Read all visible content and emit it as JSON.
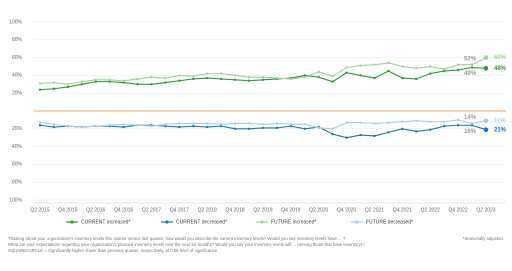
{
  "chart_data": {
    "type": "line",
    "categories": [
      "Q2 2015",
      null,
      "Q4 2015",
      null,
      "Q2 2016",
      null,
      "Q4 2016",
      null,
      "Q2 2017",
      null,
      "Q4 2017",
      null,
      "Q2 2018",
      null,
      "Q4 2018",
      null,
      "Q2 2019",
      null,
      "Q4 2019",
      null,
      "Q2 2020",
      null,
      "Q4 2020",
      null,
      "Q2 2021",
      null,
      "Q4 2021",
      null,
      "Q2 2022",
      null,
      "Q4 2022",
      null,
      "Q2 2023"
    ],
    "ylim": [
      0,
      100
    ],
    "yticks": [
      {
        "value": 20,
        "label": "20%"
      },
      {
        "value": 40,
        "label": "40%"
      },
      {
        "value": 60,
        "label": "60%"
      },
      {
        "value": 80,
        "label": "80%"
      },
      {
        "value": 100,
        "label": "100%"
      }
    ],
    "y2lim": [
      0,
      100
    ],
    "y2ticks": [
      {
        "value": 20,
        "label": "20%"
      },
      {
        "value": 40,
        "label": "40%"
      },
      {
        "value": 60,
        "label": "60%"
      },
      {
        "value": 80,
        "label": "80%"
      },
      {
        "value": 100,
        "label": "100%"
      }
    ],
    "grid": true,
    "series": [
      {
        "name": "CURRENT increased*",
        "color": "#2e9a3c",
        "values": [
          24,
          25,
          27,
          30,
          33,
          33,
          32,
          30,
          30,
          32,
          34,
          36,
          37,
          36,
          35,
          34,
          35,
          36,
          37,
          40,
          38,
          33,
          43,
          40,
          37,
          45,
          37,
          36,
          42,
          45,
          46,
          49,
          48
        ],
        "value_labels": [
          null,
          null,
          null,
          null,
          null,
          null,
          null,
          null,
          null,
          null,
          null,
          null,
          null,
          null,
          null,
          null,
          null,
          null,
          null,
          null,
          null,
          null,
          null,
          null,
          null,
          null,
          null,
          null,
          null,
          null,
          null,
          "49%",
          "48%"
        ]
      },
      {
        "name": "CURRENT decreased*",
        "color": "#1477c2",
        "axis": "y2",
        "values": [
          16,
          18,
          17,
          18,
          17,
          17,
          18,
          16,
          16,
          17,
          18,
          17,
          18,
          17,
          20,
          20,
          19,
          19,
          17,
          20,
          18,
          26,
          30,
          27,
          28,
          24,
          20,
          23,
          21,
          17,
          16,
          16,
          21
        ],
        "value_labels": [
          null,
          null,
          null,
          null,
          null,
          null,
          null,
          null,
          null,
          null,
          null,
          null,
          null,
          null,
          null,
          null,
          null,
          null,
          null,
          null,
          null,
          null,
          null,
          null,
          null,
          null,
          null,
          null,
          null,
          null,
          null,
          "16%",
          "21%"
        ]
      },
      {
        "name": "FUTURE increased*",
        "color": "#9ed39a",
        "values": [
          31,
          32,
          30,
          33,
          35,
          35,
          34,
          36,
          38,
          37,
          40,
          39,
          42,
          42,
          40,
          38,
          38,
          37,
          36,
          38,
          44,
          39,
          49,
          51,
          52,
          54,
          50,
          48,
          50,
          47,
          52,
          52,
          60
        ],
        "value_labels": [
          null,
          null,
          null,
          null,
          null,
          null,
          null,
          null,
          null,
          null,
          null,
          null,
          null,
          null,
          null,
          null,
          null,
          null,
          null,
          null,
          null,
          null,
          null,
          null,
          null,
          null,
          null,
          null,
          null,
          null,
          null,
          "52%",
          "60%"
        ]
      },
      {
        "name": "FUTURE decreased*",
        "color": "#a9cdef",
        "axis": "y2",
        "values": [
          13,
          15,
          17,
          18,
          17,
          16,
          15,
          16,
          17,
          15,
          14,
          14,
          14,
          15,
          14,
          14,
          15,
          14,
          15,
          15,
          19,
          20,
          13,
          13,
          14,
          13,
          12,
          11,
          12,
          12,
          10,
          14,
          11
        ],
        "value_labels": [
          null,
          null,
          null,
          null,
          null,
          null,
          null,
          null,
          null,
          null,
          null,
          null,
          null,
          null,
          null,
          null,
          null,
          null,
          null,
          null,
          null,
          null,
          null,
          null,
          null,
          null,
          null,
          null,
          null,
          null,
          null,
          "14%",
          "11%"
        ]
      }
    ],
    "notes": [
      "Thinking about your organization's inventory levels this quarter versus last quarter, how would you describe the current inventory levels? Would you say inventory levels have ... ?",
      "What are your expectations regarding your organization's planned inventory levels over the next six months? Would you say your inventory levels will ... (among those that have inventory)?",
      "SQUARE/CIRCLE = Significantly higher /lower than previous quarter, respectively, at 0.05 level of significance"
    ],
    "footnote": "*Seasonally adjusted."
  }
}
